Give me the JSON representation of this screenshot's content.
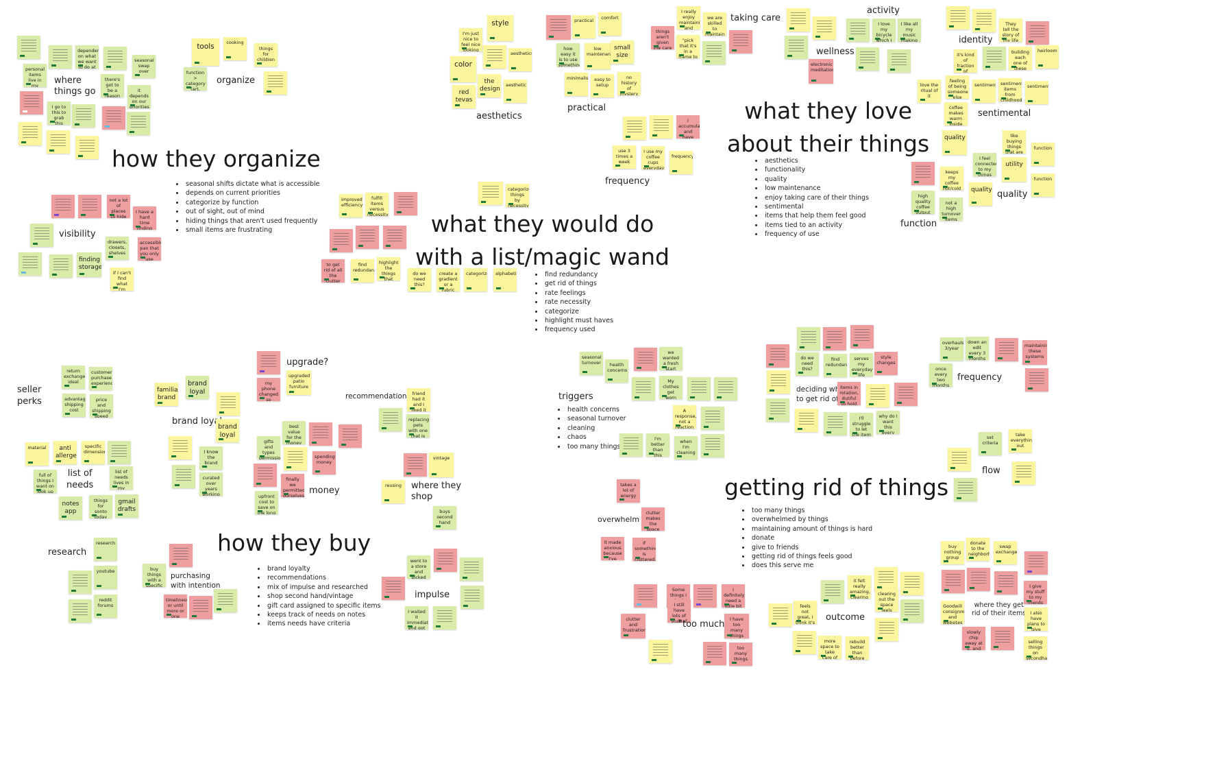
{
  "organize": {
    "title": "how they organize",
    "bullets": [
      "seasonal shifts dictate what is accessible",
      "depends on current priorities",
      "categorize by function",
      "out of sight, out of mind",
      "hiding things that aren't used frequently",
      "small items are frustrating"
    ],
    "labels": {
      "where": "where\nthings go",
      "organize": "organize",
      "visibility": "visibility"
    },
    "notes": {
      "tools": "tools",
      "cooking": "cooking",
      "things_for_children": "things for children",
      "function_category": "function > category (art, cables, tools)",
      "dependent": "dependent on what we want to do at home",
      "personal_items": "personal items live in my room",
      "theres_got_to_be": "there's got to be a reason for everything",
      "it_depends": "it depends on our priorities",
      "go_to": "I go to this to grab this",
      "seasonal_swap": "seasonal swap over",
      "not_a_lot_of_places": "not a lot of places to hide things",
      "i_have_a_hard_time": "I have a hard time finding smaller items",
      "drawers": "drawers, closets, shelves",
      "accessible": "accessible pan that you only use every job occasion",
      "finding_storage": "finding storage",
      "if_i_cant_find": "if I can't find what I'm looking for"
    }
  },
  "aesthetics": {
    "label": "aesthetics",
    "notes": {
      "im_just_nice": "I'm just nice to feel nice looking at nice stuff",
      "style": "style",
      "aesthetics": "aesthetics",
      "color": "color",
      "the_design": "the design",
      "aesthetic_b": "aesthetic",
      "red_tevas": "red tevas"
    }
  },
  "practical": {
    "label": "practical",
    "notes": {
      "practical": "practical",
      "comfort": "comfort",
      "how_easy": "how easy it is to use something",
      "low_maintenance": "low maintenance",
      "small_size": "small size",
      "minimalistic": "minimalistic",
      "easy_to_setup": "easy to setup",
      "no_history": "no history of mystery"
    }
  },
  "taking_care": {
    "label": "taking care",
    "notes": {
      "i_really_enjoy": "I really enjoy maintaining and repairing things",
      "we_are_skilled": "we are skilled to maintain what we have",
      "things_arent_given": "things aren't given the care they need in time",
      "pick_that_it": "\"pick that it's in a frame to preserve it\""
    }
  },
  "frequency_top": {
    "label": "frequency",
    "notes": {
      "i_accumulated": "I accumulated and have this stuff how often",
      "use_3_times": "use 3 times a week",
      "i_use_coffee": "I use my coffee cups everyday",
      "frequency": "frequency"
    }
  },
  "wellness": {
    "labels": {
      "activity": "activity",
      "wellness": "wellness"
    },
    "notes": {
      "i_love_my_bicycle": "I love my bicycle which I paid for",
      "i_like_all_my": "I like all my music making equipment",
      "electronic_meditation": "electronic meditation"
    }
  },
  "identity": {
    "label": "identity",
    "notes": {
      "they_tell_story": "They tell the story of my life",
      "its_kind_of_fraction": "it's kind of fraction of something that defines my identity",
      "building_each_one": "building each one of these piece by piece",
      "heirloom": "heirloom"
    }
  },
  "sentimental": {
    "label": "sentimental",
    "notes": {
      "love_ritual": "love the ritual of it",
      "feeling_of_being": "feeling of being someone else",
      "sentimental": "sentimental",
      "sentimental_items": "sentimental items from childhood",
      "sentimental_b": "sentimental",
      "coffee_makes": "coffee makes warm inside and wakes you up"
    }
  },
  "love": {
    "title": "what they love\nabout their things",
    "bullets": [
      "aesthetics",
      "functionality",
      "quality",
      "low maintenance",
      "enjoy taking care of their things",
      "sentimental",
      "items that help them feel good",
      "items tied to an activity",
      "frequency of use"
    ]
  },
  "quality_function": {
    "labels": {
      "quality": "quality",
      "function": "function"
    },
    "notes": {
      "quality_a": "quality",
      "keeps_my_coffee": "keeps my coffee hot/cold all day",
      "items_connected": "I feel connected to my things for utility",
      "utility": "utility",
      "quality_b": "quality",
      "like_buying": "like buying things that are built to last",
      "function_a": "function",
      "function_b": "function",
      "high_quality_coffee": "high quality coffee output",
      "not_a_high_turnover": "not a high turnover items guy"
    }
  },
  "magic_wand": {
    "title": "what they would do\nwith a list/magic wand",
    "bullets": [
      "find redundancy",
      "get rid of things",
      "rate feelings",
      "rate necessity",
      "categorize",
      "highlight must haves",
      "frequency used"
    ],
    "notes": {
      "categorize_things": "categorize things by necessity, time and feelings",
      "improved_efficiency": "improved efficiency",
      "fulfill_items": "fulfill items versus necessity",
      "to_get_rid": "to get rid of all the clutter and stuff I don't want",
      "find_redundancy": "find redundancy",
      "highlight_must": "highlight the things that could probably go",
      "do_we_need": "do we need this?",
      "create_gradient": "create a gradient or a rubric",
      "categorize": "categorize",
      "alphabetize": "alphabetize"
    }
  },
  "buy": {
    "title": "how they buy",
    "bullets": [
      "brand loyalty",
      "recommendations",
      "mix of impulse and researched",
      "shop second hand/vintage",
      "gift card assigned to specific items",
      "keeps track of needs on notes",
      "items needs have criteria"
    ],
    "labels": {
      "seller_perks": "seller\nperks",
      "brand_loyal": "brand loyal",
      "upgrade": "upgrade?",
      "recommendations": "recommendations",
      "list_of_needs": "list of\nneeds",
      "money": "money",
      "where_they_shop": "where they\nshop",
      "research": "research",
      "purchasing": "purchasing\nwith intention",
      "impulse": "impulse"
    },
    "notes": {
      "return_exchange": "return exchange ideal",
      "customer_experience": "customer purchase experience",
      "advantageous_shipping": "advantageous shipping cost",
      "price_and_shipping": "price and shipping speed",
      "familiar_brand": "familiar brand",
      "brand_loyal_a": "brand loyal",
      "brand_loyal_b": "brand loyal",
      "i_know_brand": "I know the brand",
      "curated_over_years": "curated over years working at work skill",
      "my_phone_changed": "my phone changed so slowly one a little",
      "upgraded_patio": "upgraded patio furniture",
      "friend_had_it": "friend had it and I liked it",
      "replacing_pets": "replacing pets with one that is in the best designed",
      "best_value": "best value for the money",
      "gifts_and_types": "gifts and types permissions in specific on an umbrella",
      "spending_money": "spending money",
      "finally_we": "finally we permitted ourselves to buy",
      "upfront_cost": "upfront cost to save on the long run",
      "material": "material",
      "anti_allergen": "anti allergen",
      "specific_dimensions": "specific dimensions",
      "full_of_things": "full of things I want on look up list I'm basic",
      "list_of_needs_lives": "list of needs lives in my head",
      "notes_app": "notes app",
      "things_for_sonto": "things for sonto today",
      "gmail_drafts": "gmail drafts",
      "vintage": "vintage",
      "reusing": "reusing",
      "buys_second_hand": "buys second hand",
      "research": "research",
      "youtube": "youtube",
      "reddit_forums": "reddit forums",
      "buy_things_with": "buy things with a specific spot in mind",
      "timeliness": "timeliness or until more or one home",
      "went_to_a_store": "went to a store and picked one I liked",
      "i_waited": "I waited it immediately and got it"
    }
  },
  "triggers": {
    "title": "triggers",
    "bullets": [
      "health concerns",
      "seasonal turnover",
      "cleaning",
      "chaos",
      "too many things"
    ],
    "notes": {
      "seasonal_turnover": "seasonal turnover",
      "health_concerns": "health concerns",
      "we_wanted": "we wanted a fresh start and to do a deep clean",
      "my_clothes": "My clothes get worn out",
      "a_response": "A response, not a reaction",
      "im_better": "I'm better than this",
      "when_im_cleaning": "when I'm cleaning"
    }
  },
  "deciding": {
    "label": "deciding what\nto get rid of",
    "notes": {
      "do_we_need": "do we need this?",
      "find_redundancy": "find redundancy",
      "serves_my": "serves my everyday life",
      "style_changes": "style changes",
      "items_in_rotation": "items in rotation, dutiful to hold items",
      "ill_struggle": "I'll struggle to let the item go out the door",
      "why_do_i_want": "why do I want this every single thing in this to things"
    }
  },
  "frequency_bottom": {
    "labels": {
      "frequency": "frequency",
      "flow": "flow"
    },
    "notes": {
      "overhauls": "overhauls 3/year",
      "down_an_edit": "down an edit every 3 months",
      "maintaining_these": "maintaining these systems",
      "once_every_two": "once every two months",
      "set_criteria": "set criteria",
      "take_everything_out": "take everything out"
    }
  },
  "rid": {
    "title": "getting rid of things",
    "bullets": [
      "too many things",
      "overwhelmed by things",
      "maintaining amount of things is hard",
      "donate",
      "give to friends",
      "getting rid of things feels good",
      "does this serve me"
    ],
    "labels": {
      "overwhelm": "overwhelm",
      "too_much": "\"too much\"",
      "outcome": "outcome",
      "where_they_get_rid": "where they get\nrid of their items"
    },
    "notes": {
      "takes_a_lot": "takes a lot of energy",
      "clutter_makes": "clutter makes the space feel overwhelming",
      "made_anxious": "it made anxious because I've moved and left this place",
      "if_something": "if something is cluttered, it's cluttered, I feel chaotic",
      "some_things": "Some things I don't think I ever look at",
      "i_still_have": "I still have lots of stuff of 'probably don't need'",
      "i_definitely": "I definitely need a little bit less",
      "clutter_frustration": "clutter and frustration",
      "i_have_too_many": "I have too many things",
      "too_many_things": "too many things",
      "it_felt_really": "it felt really amazing, clearing it out",
      "clearing_out": "clearing out the space feels great",
      "feels_not_good": "feels not great, I think it's necessary",
      "more_space": "more space to take care of other things",
      "rebuild_better": "rebuild better than before",
      "buy_nothing": "buy nothing group",
      "donate_to_the": "donate to the neighborhood",
      "swap_exchange": "swap exchange",
      "take_care_of": "I give my stuff to my friends and family",
      "goodwill": "Goodwill consignment and websites",
      "i_also_have": "I also have plans to give things away",
      "i_selling": "selling things on secondhand for me",
      "slowly_chip": "slowly chip away at it, and gradually declutter"
    }
  }
}
